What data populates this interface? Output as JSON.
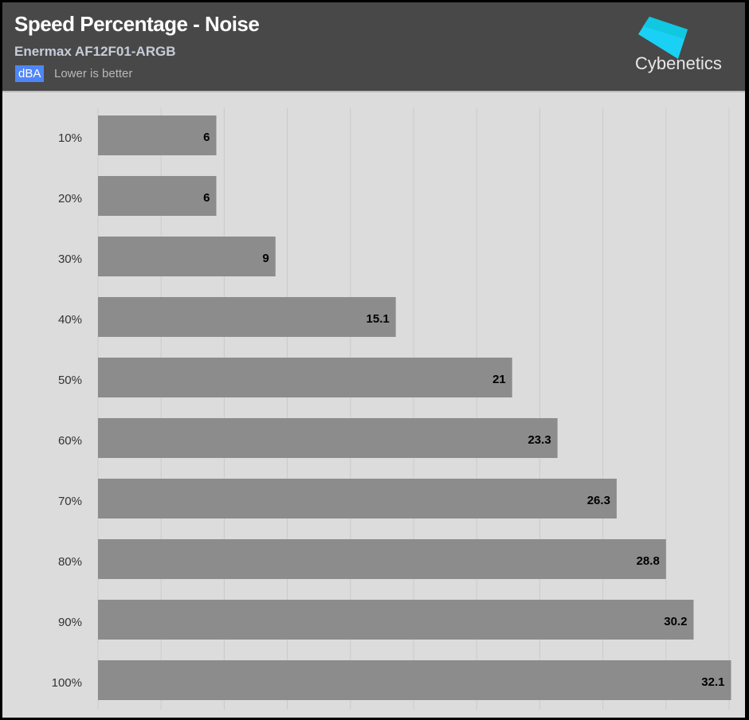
{
  "header": {
    "title": "Speed Percentage - Noise",
    "subtitle": "Enermax AF12F01-ARGB",
    "unit": "dBA",
    "note": "Lower is better",
    "logo_text": "Cybenetics"
  },
  "colors": {
    "header_bg": "#484848",
    "plot_bg": "#dcdcdc",
    "bar": "#8c8c8c",
    "unit_badge": "#4f86f7",
    "logo": "#1ad1f5"
  },
  "chart_data": {
    "type": "bar",
    "orientation": "horizontal",
    "categories": [
      "10%",
      "20%",
      "30%",
      "40%",
      "50%",
      "60%",
      "70%",
      "80%",
      "90%",
      "100%"
    ],
    "values": [
      6,
      6,
      9,
      15.1,
      21,
      23.3,
      26.3,
      28.8,
      30.2,
      32.1
    ],
    "xlim": [
      0,
      32
    ],
    "grid": true,
    "data_labels": true
  }
}
